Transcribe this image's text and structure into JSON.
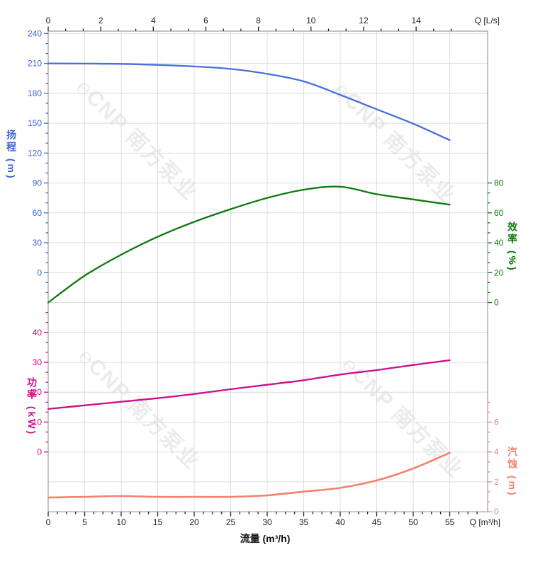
{
  "chart_data": {
    "type": "line",
    "description": "Pump performance curves: head, efficiency, power and NPSH versus flow",
    "x_flow_m3h": [
      0,
      5,
      10,
      15,
      20,
      25,
      30,
      35,
      40,
      45,
      50,
      55
    ],
    "series": [
      {
        "id": "head",
        "name": "扬程",
        "unit": "m",
        "color": "#4a6edb",
        "values": [
          210,
          209.8,
          209.5,
          208.5,
          207,
          204.5,
          199.5,
          192,
          178.5,
          164,
          149.5,
          133
        ]
      },
      {
        "id": "efficiency",
        "name": "效率",
        "unit": "%",
        "color": "#0d7a0d",
        "values": [
          0,
          18,
          32,
          44,
          54,
          62.5,
          70,
          75.5,
          77.5,
          72.5,
          69,
          65.5
        ]
      },
      {
        "id": "power",
        "name": "功率",
        "unit": "kW",
        "color": "#cb0f8d",
        "values": [
          14.4,
          15.6,
          16.8,
          18,
          19.4,
          21,
          22.5,
          24,
          25.9,
          27.4,
          29.1,
          30.7
        ]
      },
      {
        "id": "npsh",
        "name": "汽蚀",
        "unit": "m",
        "color": "#f5806e",
        "values": [
          0.95,
          1,
          1.05,
          1,
          1,
          1,
          1.1,
          1.35,
          1.6,
          2.1,
          2.9,
          3.95
        ]
      }
    ],
    "axes": {
      "top": {
        "unit_label": "Q [L/s]",
        "tick_color": "#222222",
        "major_tick_labels": [
          "0",
          "2",
          "4",
          "6",
          "8",
          "10",
          "12",
          "14"
        ]
      },
      "bottom": {
        "title": "流量 (m³/h)",
        "unit_label": "Q [m³/h]",
        "tick_color": "#222222",
        "major_tick_labels": [
          "0",
          "5",
          "10",
          "15",
          "20",
          "25",
          "30",
          "35",
          "40",
          "45",
          "50",
          "55"
        ]
      },
      "head": {
        "title": "扬程 (m)",
        "color": "#3f66d4",
        "range": [
          0,
          240
        ],
        "major_tick_labels": [
          "240",
          "210",
          "180",
          "150",
          "120",
          "90",
          "60",
          "30",
          "0"
        ]
      },
      "efficiency": {
        "title": "效率 (%)",
        "color": "#0d7a0d",
        "range": [
          0,
          80
        ],
        "major_tick_labels": [
          "80",
          "60",
          "40",
          "20",
          "0"
        ]
      },
      "power": {
        "title": "功率 (kW)",
        "color": "#cb0f8d",
        "range": [
          0,
          40
        ],
        "major_tick_labels": [
          "40",
          "30",
          "20",
          "10",
          "0"
        ]
      },
      "npsh": {
        "title": "汽蚀 (m)",
        "color": "#f5806e",
        "range": [
          0,
          6
        ],
        "major_tick_labels": [
          "6",
          "4",
          "2",
          "0"
        ]
      }
    },
    "grid": {
      "on": true,
      "color": "#dcdcdc",
      "border_color": "#9a9a9a"
    },
    "legend": {
      "position": "none"
    }
  },
  "watermark": {
    "text": "℮CNP 南方泵业"
  }
}
